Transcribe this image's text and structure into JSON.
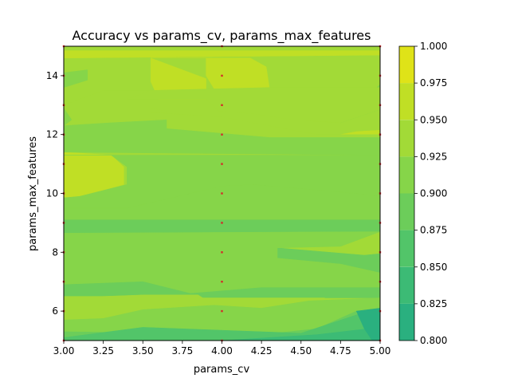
{
  "chart_data": {
    "type": "contourf",
    "title": "Accuracy vs params_cv, params_max_features",
    "xlabel": "params_cv",
    "ylabel": "params_max_features",
    "xlim": [
      3.0,
      5.0
    ],
    "ylim": [
      5,
      15
    ],
    "x_ticks": [
      3.0,
      3.25,
      3.5,
      3.75,
      4.0,
      4.25,
      4.5,
      4.75,
      5.0
    ],
    "x_tick_labels": [
      "3.00",
      "3.25",
      "3.50",
      "3.75",
      "4.00",
      "4.25",
      "4.50",
      "4.75",
      "5.00"
    ],
    "y_ticks": [
      6,
      8,
      10,
      12,
      14
    ],
    "y_tick_labels": [
      "6",
      "8",
      "10",
      "12",
      "14"
    ],
    "colorbar": {
      "levels": [
        0.8,
        0.825,
        0.85,
        0.875,
        0.9,
        0.925,
        0.95,
        0.975,
        1.0
      ],
      "tick_labels": [
        "0.800",
        "0.825",
        "0.850",
        "0.875",
        "0.900",
        "0.925",
        "0.950",
        "0.975",
        "1.000"
      ],
      "colors": [
        "#2ab07f",
        "#3cbb75",
        "#52c569",
        "#6ccd5a",
        "#86d549",
        "#a2da37",
        "#c0df25",
        "#dfe318"
      ]
    },
    "regions": [
      {
        "level": 5,
        "points": [
          [
            3.0,
            15
          ],
          [
            5.0,
            15
          ],
          [
            5.0,
            5
          ],
          [
            3.0,
            5
          ]
        ]
      },
      {
        "level": 6,
        "points": [
          [
            3.0,
            14.85
          ],
          [
            5.0,
            14.85
          ],
          [
            5.0,
            14.7
          ],
          [
            3.0,
            14.6
          ]
        ]
      },
      {
        "level": 6,
        "points": [
          [
            3.55,
            14.6
          ],
          [
            3.9,
            14.6
          ],
          [
            3.9,
            14.0
          ],
          [
            3.98,
            13.3
          ],
          [
            4.28,
            13.2
          ],
          [
            4.3,
            13.6
          ],
          [
            4.28,
            14.3
          ],
          [
            4.18,
            14.6
          ],
          [
            3.55,
            14.6
          ],
          [
            3.55,
            13.8
          ],
          [
            3.6,
            13.2
          ],
          [
            3.9,
            13.2
          ],
          [
            3.9,
            13.9
          ]
        ]
      },
      {
        "level": 6,
        "points": [
          [
            3.0,
            13.0
          ],
          [
            3.0,
            12.9
          ]
        ]
      },
      {
        "level": 6,
        "points": [
          [
            3.0,
            11.4
          ],
          [
            3.3,
            11.3
          ],
          [
            3.38,
            10.9
          ],
          [
            3.38,
            10.3
          ],
          [
            3.1,
            9.9
          ],
          [
            3.0,
            9.85
          ]
        ]
      },
      {
        "level": 6,
        "points": [
          [
            3.0,
            6.05
          ],
          [
            3.12,
            6.2
          ],
          [
            3.0,
            6.25
          ]
        ]
      },
      {
        "level": 6,
        "points": [
          [
            4.75,
            12.0
          ],
          [
            5.0,
            11.9
          ],
          [
            5.0,
            12.15
          ],
          [
            4.85,
            12.1
          ]
        ]
      },
      {
        "level": 4,
        "points": [
          [
            3.0,
            14.1
          ],
          [
            3.15,
            14.2
          ],
          [
            3.15,
            13.85
          ],
          [
            3.0,
            13.6
          ]
        ]
      },
      {
        "level": 4,
        "points": [
          [
            4.75,
            12.4
          ],
          [
            5.0,
            12.85
          ],
          [
            5.0,
            13.7
          ],
          [
            4.85,
            13.0
          ]
        ]
      },
      {
        "level": 4,
        "points": [
          [
            3.0,
            9.5
          ],
          [
            3.4,
            9.5
          ],
          [
            4.0,
            10.25
          ],
          [
            4.2,
            10.3
          ],
          [
            4.85,
            10.0
          ],
          [
            5.0,
            9.9
          ],
          [
            5.0,
            9.1
          ],
          [
            3.0,
            9.1
          ]
        ]
      },
      {
        "level": 3,
        "points": [
          [
            3.0,
            9.1
          ],
          [
            5.0,
            9.1
          ],
          [
            5.0,
            8.7
          ],
          [
            3.0,
            8.65
          ]
        ]
      },
      {
        "level": 3,
        "points": [
          [
            4.35,
            8.15
          ],
          [
            4.9,
            7.9
          ],
          [
            5.0,
            7.95
          ],
          [
            5.0,
            7.3
          ],
          [
            4.75,
            7.6
          ],
          [
            4.35,
            7.8
          ]
        ]
      },
      {
        "level": 4,
        "points": [
          [
            3.0,
            8.65
          ],
          [
            5.0,
            8.7
          ],
          [
            4.75,
            8.2
          ],
          [
            4.35,
            8.15
          ],
          [
            4.35,
            7.8
          ],
          [
            4.75,
            7.6
          ],
          [
            5.0,
            7.3
          ],
          [
            5.0,
            6.8
          ],
          [
            4.25,
            6.8
          ],
          [
            3.8,
            6.6
          ],
          [
            3.5,
            7.0
          ],
          [
            3.0,
            6.9
          ]
        ]
      },
      {
        "level": 3,
        "points": [
          [
            3.0,
            6.9
          ],
          [
            3.5,
            7.0
          ],
          [
            3.8,
            6.6
          ],
          [
            4.25,
            6.8
          ],
          [
            5.0,
            6.8
          ],
          [
            5.0,
            6.45
          ],
          [
            3.0,
            6.45
          ]
        ]
      },
      {
        "level": 5,
        "points": [
          [
            3.0,
            6.5
          ],
          [
            3.7,
            6.5
          ],
          [
            3.8,
            6.35
          ],
          [
            3.9,
            6.3
          ],
          [
            4.0,
            6.1
          ],
          [
            4.25,
            6.1
          ],
          [
            4.55,
            6.3
          ],
          [
            4.65,
            6.45
          ],
          [
            3.0,
            6.45
          ]
        ]
      },
      {
        "level": 5,
        "points": [
          [
            3.0,
            6.45
          ],
          [
            3.5,
            6.55
          ],
          [
            3.85,
            6.55
          ],
          [
            3.95,
            6.2
          ],
          [
            3.5,
            6.05
          ],
          [
            3.25,
            5.75
          ],
          [
            3.0,
            5.7
          ]
        ]
      },
      {
        "level": 4,
        "points": [
          [
            3.0,
            5.7
          ],
          [
            3.25,
            5.75
          ],
          [
            3.5,
            6.05
          ],
          [
            3.95,
            6.2
          ],
          [
            4.25,
            6.1
          ],
          [
            4.55,
            6.35
          ],
          [
            5.0,
            6.45
          ],
          [
            5.0,
            6.05
          ],
          [
            4.85,
            6.0
          ],
          [
            4.6,
            5.4
          ],
          [
            4.25,
            5.2
          ],
          [
            3.0,
            5.3
          ]
        ]
      },
      {
        "level": 3,
        "points": [
          [
            3.0,
            5.3
          ],
          [
            4.25,
            5.2
          ],
          [
            4.6,
            5.4
          ],
          [
            4.85,
            6.0
          ],
          [
            5.0,
            6.05
          ],
          [
            5.0,
            5.0
          ],
          [
            3.0,
            5.0
          ]
        ]
      },
      {
        "level": 2,
        "points": [
          [
            3.0,
            5.1
          ],
          [
            3.5,
            5.45
          ],
          [
            4.0,
            5.35
          ],
          [
            4.5,
            5.25
          ],
          [
            4.95,
            6.05
          ],
          [
            5.0,
            6.05
          ],
          [
            5.0,
            5.0
          ],
          [
            3.0,
            5.0
          ]
        ]
      },
      {
        "level": 1,
        "points": [
          [
            4.0,
            5.0
          ],
          [
            4.6,
            5.2
          ],
          [
            5.0,
            5.45
          ],
          [
            5.0,
            5.0
          ]
        ]
      },
      {
        "level": 0,
        "points": [
          [
            4.95,
            5.0
          ],
          [
            5.0,
            5.0
          ],
          [
            5.0,
            6.1
          ],
          [
            4.85,
            6.0
          ],
          [
            4.9,
            5.4
          ]
        ]
      }
    ],
    "band_overrides": [
      {
        "level": 5,
        "points": [
          [
            3.0,
            13.0
          ],
          [
            3.25,
            13.5
          ],
          [
            3.55,
            13.5
          ],
          [
            3.55,
            12.9
          ],
          [
            3.65,
            12.8
          ],
          [
            3.65,
            12.5
          ],
          [
            3.0,
            12.45
          ]
        ]
      },
      {
        "level": 4,
        "points": [
          [
            3.0,
            12.9
          ],
          [
            3.05,
            12.5
          ],
          [
            3.0,
            12.3
          ]
        ]
      },
      {
        "level": 5,
        "points": [
          [
            3.55,
            12.75
          ],
          [
            4.0,
            12.6
          ],
          [
            4.3,
            12.3
          ],
          [
            4.6,
            12.0
          ],
          [
            4.85,
            12.0
          ],
          [
            5.0,
            12.0
          ],
          [
            5.0,
            11.9
          ],
          [
            4.3,
            11.9
          ],
          [
            3.65,
            12.2
          ],
          [
            3.55,
            12.45
          ]
        ]
      },
      {
        "level": 4,
        "points": [
          [
            3.65,
            12.5
          ],
          [
            3.65,
            12.2
          ],
          [
            4.3,
            11.9
          ],
          [
            5.0,
            11.9
          ],
          [
            5.0,
            11.3
          ],
          [
            3.0,
            11.4
          ],
          [
            3.0,
            12.3
          ],
          [
            3.3,
            12.4
          ]
        ]
      },
      {
        "level": 5,
        "points": [
          [
            3.4,
            13.2
          ],
          [
            3.55,
            13.2
          ],
          [
            3.9,
            13.2
          ],
          [
            3.98,
            12.8
          ],
          [
            4.2,
            12.7
          ],
          [
            4.45,
            12.5
          ],
          [
            4.75,
            12.4
          ],
          [
            5.0,
            12.85
          ],
          [
            5.0,
            13.6
          ],
          [
            4.3,
            13.6
          ],
          [
            3.55,
            13.5
          ]
        ]
      },
      {
        "level": 4,
        "points": [
          [
            3.0,
            11.3
          ],
          [
            3.3,
            11.3
          ],
          [
            3.4,
            10.9
          ],
          [
            3.4,
            10.3
          ],
          [
            3.1,
            9.9
          ],
          [
            3.0,
            9.85
          ],
          [
            3.0,
            9.5
          ],
          [
            3.4,
            9.5
          ],
          [
            4.0,
            10.25
          ],
          [
            4.2,
            10.3
          ],
          [
            4.85,
            10.0
          ],
          [
            5.0,
            9.9
          ],
          [
            5.0,
            11.3
          ]
        ]
      }
    ],
    "sample_points": [
      [
        3,
        5
      ],
      [
        3,
        6
      ],
      [
        3,
        7
      ],
      [
        3,
        8
      ],
      [
        3,
        9
      ],
      [
        3,
        10
      ],
      [
        3,
        11
      ],
      [
        3,
        12
      ],
      [
        3,
        13
      ],
      [
        3,
        14
      ],
      [
        3,
        15
      ],
      [
        4,
        5
      ],
      [
        4,
        6
      ],
      [
        4,
        7
      ],
      [
        4,
        8
      ],
      [
        4,
        9
      ],
      [
        4,
        10
      ],
      [
        4,
        11
      ],
      [
        4,
        12
      ],
      [
        4,
        13
      ],
      [
        4,
        14
      ],
      [
        4,
        15
      ],
      [
        5,
        5
      ],
      [
        5,
        6
      ],
      [
        5,
        7
      ],
      [
        5,
        8
      ],
      [
        5,
        9
      ],
      [
        5,
        10
      ],
      [
        5,
        11
      ],
      [
        5,
        12
      ],
      [
        5,
        13
      ],
      [
        5,
        14
      ],
      [
        5,
        15
      ]
    ],
    "marker_color": "#d62728"
  }
}
